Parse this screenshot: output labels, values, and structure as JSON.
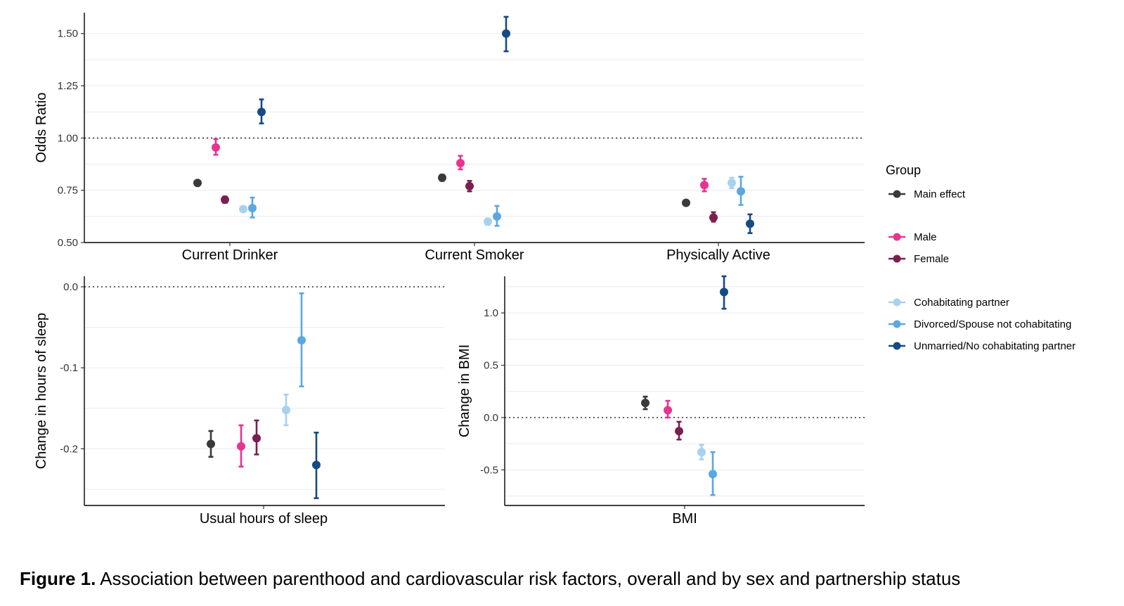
{
  "colors": {
    "Main effect": "#3a3a3a",
    "Male": "#e8348e",
    "Female": "#7a1f4f",
    "Cohabitating partner": "#a6d1ef",
    "Divorced/Spouse not cohabitating": "#5ba7e2",
    "Unmarried/No cohabitating partner": "#154a85"
  },
  "legend": {
    "title": "Group",
    "items": [
      "Main effect",
      "Male",
      "Female",
      "Cohabitating partner",
      "Divorced/Spouse not cohabitating",
      "Unmarried/No cohabitating partner"
    ]
  },
  "caption": {
    "label": "Figure 1.",
    "text": " Association between parenthood and cardiovascular risk factors, overall and by sex and partnership status"
  },
  "chart_data": [
    {
      "type": "scatter",
      "subtype": "dot-and-errorbar",
      "ylabel": "Odds Ratio",
      "ylim": [
        0.5,
        1.6
      ],
      "yticks": [
        "0.50",
        "0.75",
        "1.00",
        "1.25",
        "1.50"
      ],
      "reference_line": 1.0,
      "categories": [
        "Current Drinker",
        "Current Smoker",
        "Physically Active"
      ],
      "series": [
        {
          "name": "Main effect",
          "values": [
            {
              "est": 0.785,
              "lo": 0.775,
              "hi": 0.795
            },
            {
              "est": 0.81,
              "lo": 0.795,
              "hi": 0.825
            },
            {
              "est": 0.69,
              "lo": 0.68,
              "hi": 0.7
            }
          ]
        },
        {
          "name": "Male",
          "values": [
            {
              "est": 0.955,
              "lo": 0.92,
              "hi": 0.995
            },
            {
              "est": 0.88,
              "lo": 0.85,
              "hi": 0.915
            },
            {
              "est": 0.775,
              "lo": 0.745,
              "hi": 0.805
            }
          ]
        },
        {
          "name": "Female",
          "values": [
            {
              "est": 0.705,
              "lo": 0.69,
              "hi": 0.72
            },
            {
              "est": 0.77,
              "lo": 0.745,
              "hi": 0.795
            },
            {
              "est": 0.62,
              "lo": 0.6,
              "hi": 0.645
            }
          ]
        },
        {
          "name": "Cohabitating partner",
          "values": [
            {
              "est": 0.66,
              "lo": 0.65,
              "hi": 0.67
            },
            {
              "est": 0.6,
              "lo": 0.585,
              "hi": 0.615
            },
            {
              "est": 0.785,
              "lo": 0.76,
              "hi": 0.81
            }
          ]
        },
        {
          "name": "Divorced/Spouse not cohabitating",
          "values": [
            {
              "est": 0.665,
              "lo": 0.62,
              "hi": 0.715
            },
            {
              "est": 0.625,
              "lo": 0.58,
              "hi": 0.675
            },
            {
              "est": 0.745,
              "lo": 0.68,
              "hi": 0.815
            }
          ]
        },
        {
          "name": "Unmarried/No cohabitating partner",
          "values": [
            {
              "est": 1.125,
              "lo": 1.07,
              "hi": 1.185
            },
            {
              "est": 1.5,
              "lo": 1.415,
              "hi": 1.58
            },
            {
              "est": 0.59,
              "lo": 0.545,
              "hi": 0.635
            }
          ]
        }
      ]
    },
    {
      "type": "scatter",
      "subtype": "dot-and-errorbar",
      "ylabel": "Change in hours of sleep",
      "ylim": [
        -0.27,
        0.013
      ],
      "yticks": [
        "0.0",
        "-0.1",
        "-0.2"
      ],
      "reference_line": 0.0,
      "categories": [
        "Usual hours of sleep"
      ],
      "series": [
        {
          "name": "Main effect",
          "values": [
            {
              "est": -0.194,
              "lo": -0.21,
              "hi": -0.178
            }
          ]
        },
        {
          "name": "Male",
          "values": [
            {
              "est": -0.197,
              "lo": -0.222,
              "hi": -0.171
            }
          ]
        },
        {
          "name": "Female",
          "values": [
            {
              "est": -0.187,
              "lo": -0.207,
              "hi": -0.165
            }
          ]
        },
        {
          "name": "Cohabitating partner",
          "values": [
            {
              "est": -0.152,
              "lo": -0.171,
              "hi": -0.133
            }
          ]
        },
        {
          "name": "Divorced/Spouse not cohabitating",
          "values": [
            {
              "est": -0.066,
              "lo": -0.123,
              "hi": -0.008
            }
          ]
        },
        {
          "name": "Unmarried/No cohabitating partner",
          "values": [
            {
              "est": -0.22,
              "lo": -0.261,
              "hi": -0.18
            }
          ]
        }
      ]
    },
    {
      "type": "scatter",
      "subtype": "dot-and-errorbar",
      "ylabel": "Change in BMI",
      "ylim": [
        -0.84,
        1.35
      ],
      "yticks": [
        "1.0",
        "0.5",
        "0.0",
        "-0.5"
      ],
      "reference_line": 0.0,
      "categories": [
        "BMI"
      ],
      "series": [
        {
          "name": "Main effect",
          "values": [
            {
              "est": 0.14,
              "lo": 0.08,
              "hi": 0.2
            }
          ]
        },
        {
          "name": "Male",
          "values": [
            {
              "est": 0.07,
              "lo": 0.0,
              "hi": 0.16
            }
          ]
        },
        {
          "name": "Female",
          "values": [
            {
              "est": -0.13,
              "lo": -0.21,
              "hi": -0.04
            }
          ]
        },
        {
          "name": "Cohabitating partner",
          "values": [
            {
              "est": -0.33,
              "lo": -0.4,
              "hi": -0.26
            }
          ]
        },
        {
          "name": "Divorced/Spouse not cohabitating",
          "values": [
            {
              "est": -0.54,
              "lo": -0.74,
              "hi": -0.33
            }
          ]
        },
        {
          "name": "Unmarried/No cohabitating partner",
          "values": [
            {
              "est": 1.2,
              "lo": 1.04,
              "hi": 1.35
            }
          ]
        }
      ]
    }
  ]
}
